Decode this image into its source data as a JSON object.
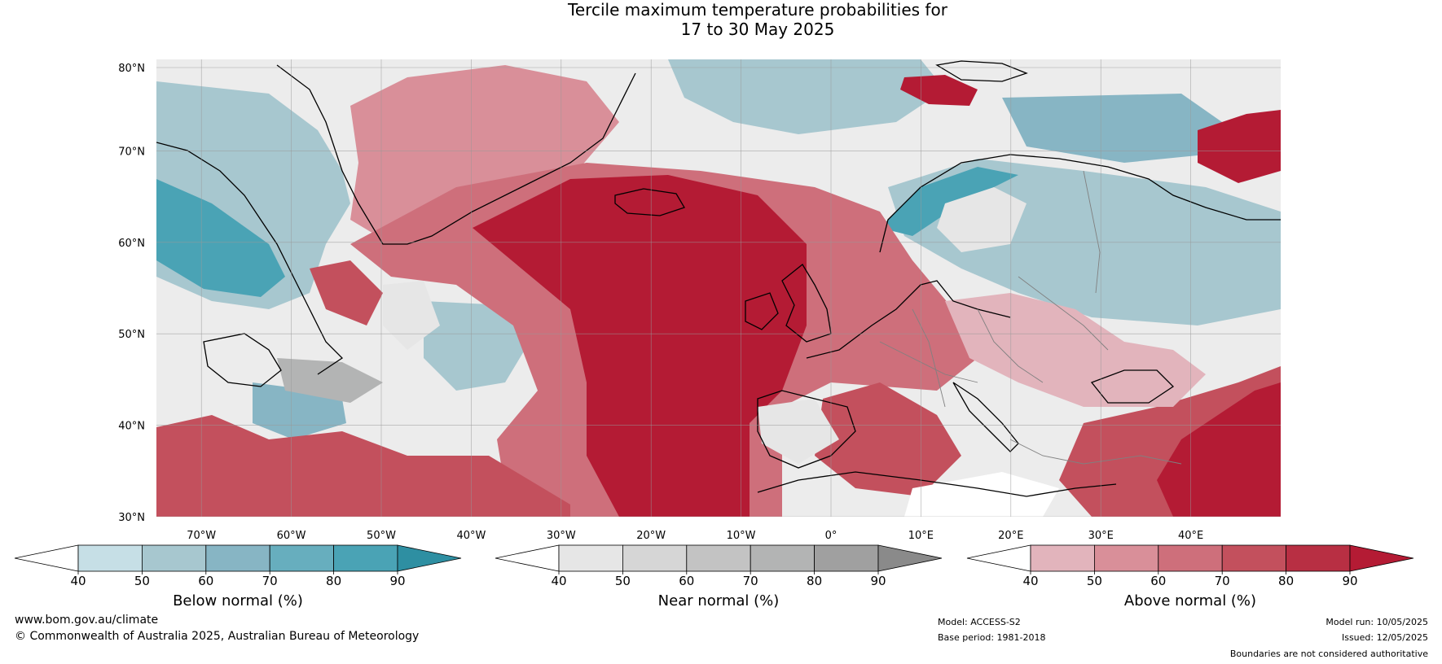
{
  "title": {
    "line1": "Tercile maximum temperature probabilities for",
    "line2": "17 to 30 May 2025"
  },
  "map": {
    "lat_ticks": [
      "80°N",
      "70°N",
      "60°N",
      "50°N",
      "40°N",
      "30°N"
    ],
    "lon_ticks": [
      "70°W",
      "60°W",
      "50°W",
      "40°W",
      "30°W",
      "20°W",
      "10°W",
      "0°",
      "10°E",
      "20°E",
      "30°E",
      "40°E"
    ],
    "lat_range": [
      30,
      80
    ],
    "lon_range": [
      -75,
      50
    ]
  },
  "colorbars": [
    {
      "label": "Below normal (%)",
      "ticks": [
        "40",
        "50",
        "60",
        "70",
        "80",
        "90"
      ],
      "colors": [
        "#ffffff",
        "#c6dfe6",
        "#a7c7cf",
        "#87b5c4",
        "#67aebe",
        "#4aa3b5",
        "#2e8fa2"
      ]
    },
    {
      "label": "Near normal (%)",
      "ticks": [
        "40",
        "50",
        "60",
        "70",
        "80",
        "90"
      ],
      "colors": [
        "#ffffff",
        "#e6e6e6",
        "#d6d6d6",
        "#c3c3c3",
        "#b3b4b4",
        "#a0a0a0",
        "#8a8a8a"
      ]
    },
    {
      "label": "Above normal (%)",
      "ticks": [
        "40",
        "50",
        "60",
        "70",
        "80",
        "90"
      ],
      "colors": [
        "#ffffff",
        "#e2b4bc",
        "#d98f99",
        "#ce6f7b",
        "#c3505d",
        "#b82f43",
        "#b41b34"
      ]
    }
  ],
  "footer": {
    "website": "www.bom.gov.au/climate",
    "copyright": "© Commonwealth of Australia 2025, Australian Bureau of Meteorology",
    "model": "Model: ACCESS-S2",
    "base_period": "Base period: 1981-2018",
    "model_run": "Model run: 10/05/2025",
    "issued": "Issued: 12/05/2025",
    "disclaimer": "Boundaries are not considered authoritative"
  },
  "colors": {
    "ocean_above_high": "#b41b34",
    "above_mid": "#c3505d",
    "above_low": "#e2b4bc",
    "below_mid": "#a7c7cf",
    "below_high": "#4aa3b5",
    "near": "#d6d6d6",
    "coast": "#000000",
    "border": "#808080"
  }
}
